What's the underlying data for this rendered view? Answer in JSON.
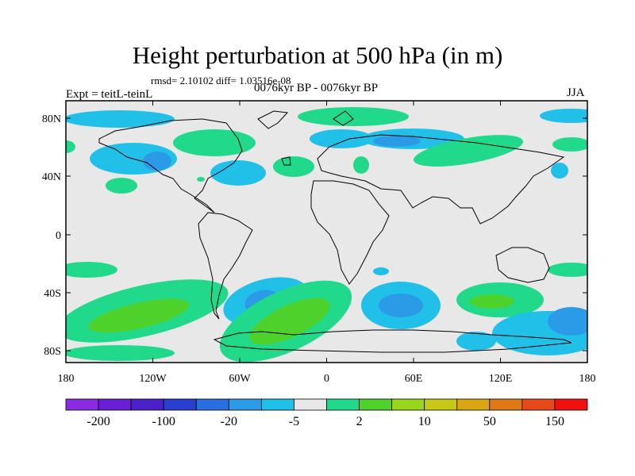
{
  "title": "Height perturbation at 500 hPa (in m)",
  "stats": "rmsd= 2.10102 diff= 1.03516e-08",
  "left_label": "Expt = teitL-teinL",
  "center_label": "0076kyr BP - 0076kyr BP",
  "right_label": "JJA",
  "axes": {
    "lat_ticks": [
      "80N",
      "40N",
      "0",
      "40S",
      "80S"
    ],
    "lon_ticks": [
      "180",
      "120W",
      "60W",
      "0",
      "60E",
      "120E",
      "180"
    ]
  },
  "colorbar": {
    "colors": [
      "#8a2be2",
      "#6a1fd6",
      "#4b22c8",
      "#2a3ed0",
      "#2a6fe0",
      "#2b9be8",
      "#21c0e8",
      "#e8e8e8",
      "#21d98a",
      "#4fd12b",
      "#9bd41c",
      "#c8c81a",
      "#d9a512",
      "#e07818",
      "#e64a1a",
      "#f01010"
    ],
    "labels": [
      "-200",
      "-100",
      "-20",
      "-5",
      "2",
      "10",
      "50",
      "150"
    ]
  },
  "colors": {
    "background": "#e8e8e8",
    "positive_weak": "#21d98a",
    "positive_mid": "#4fd12b",
    "negative_weak": "#21c0e8",
    "negative_mid": "#2b9be8"
  }
}
